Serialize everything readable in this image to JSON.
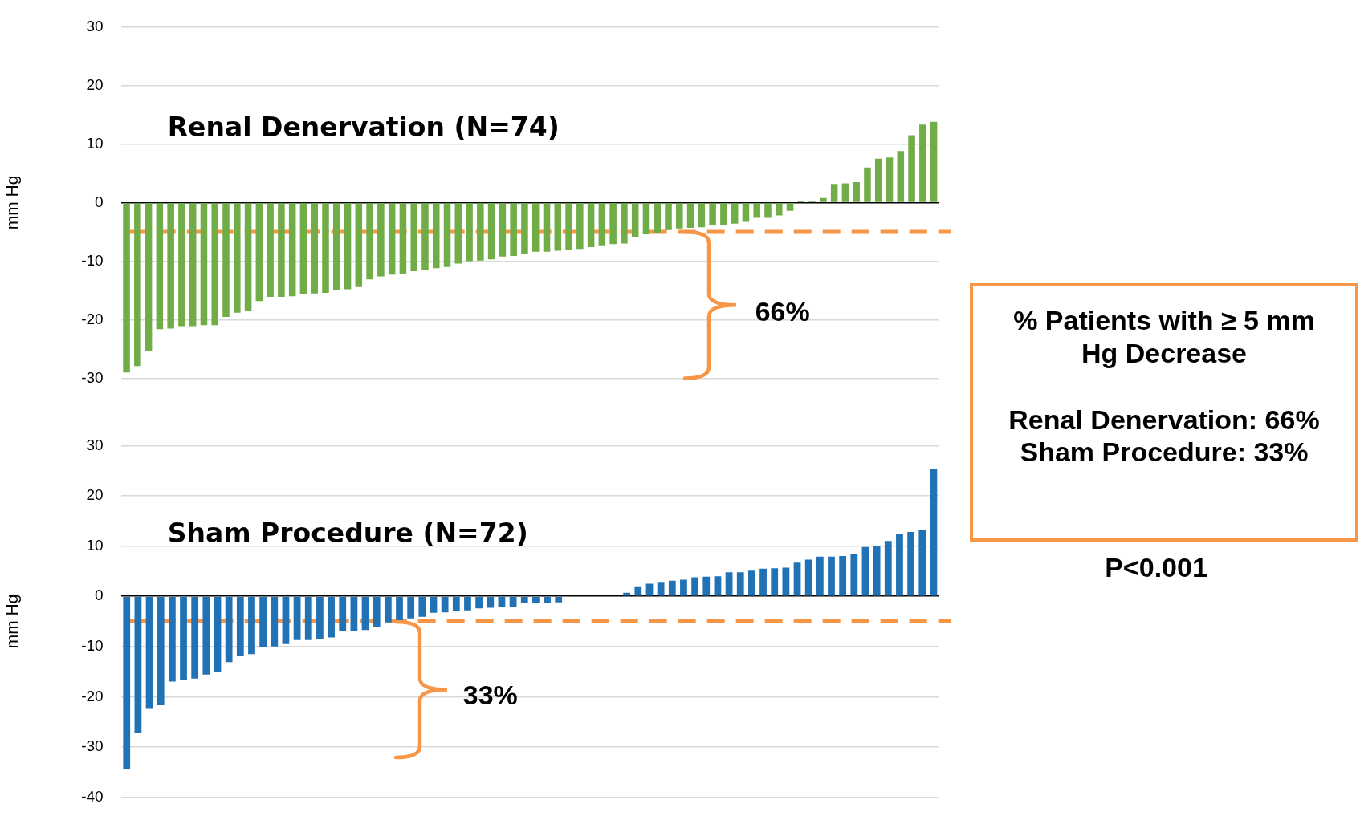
{
  "chart_data": [
    {
      "type": "bar",
      "title": "Renal Denervation (N=74)",
      "ylabel": "mm Hg",
      "color": "#70ad47",
      "ylim": [
        -30,
        30
      ],
      "yticks": [
        -30,
        -20,
        -10,
        0,
        10,
        20,
        30
      ],
      "grid": "y",
      "tick_labels": "y",
      "categories": [
        null,
        null,
        null,
        null,
        null,
        null,
        null,
        null,
        null,
        null,
        null,
        null,
        null,
        null,
        null,
        null,
        null,
        null,
        null,
        null,
        null,
        null,
        null,
        null,
        null,
        null,
        null,
        null,
        null,
        null,
        null,
        null,
        null,
        null,
        null,
        null,
        null,
        null,
        null,
        null,
        null,
        null,
        null,
        null,
        null,
        null,
        null,
        null,
        null,
        null,
        null,
        null,
        null,
        null,
        null,
        null,
        null,
        null,
        null,
        null,
        null,
        null,
        null,
        null,
        null,
        null,
        null,
        null,
        null,
        null,
        null,
        null,
        null,
        null
      ],
      "values": [
        -29,
        -27.9,
        -25.3,
        -21.6,
        -21.5,
        -21.1,
        -21.1,
        -20.9,
        -20.9,
        -19.5,
        -18.8,
        -18.5,
        -16.8,
        -16.1,
        -16.1,
        -16,
        -15.6,
        -15.5,
        -15.4,
        -15,
        -14.8,
        -14.4,
        -13.1,
        -12.6,
        -12.3,
        -12.2,
        -11.7,
        -11.5,
        -11.2,
        -11,
        -10.4,
        -10,
        -9.9,
        -9.7,
        -9.2,
        -9.1,
        -8.8,
        -8.4,
        -8.4,
        -8.2,
        -8,
        -7.9,
        -7.6,
        -7.3,
        -7.1,
        -7,
        -5.9,
        -5.4,
        -5.2,
        -4.7,
        -4.4,
        -4.3,
        -4.2,
        -3.8,
        -3.8,
        -3.6,
        -3.3,
        -2.6,
        -2.6,
        -2.2,
        -1.4,
        0.2,
        0.2,
        0.8,
        3.2,
        3.3,
        3.5,
        6,
        7.5,
        7.7,
        8.8,
        11.5,
        13.3,
        13.8
      ],
      "ref_lines": [
        {
          "axis": "y",
          "value": -5,
          "color": "#f79646",
          "line_style": "dashed"
        }
      ],
      "annotations": [
        "66%"
      ]
    },
    {
      "type": "bar",
      "title": "Sham Procedure (N=72)",
      "ylabel": "mm Hg",
      "color": "#2172b5",
      "ylim": [
        -40,
        30
      ],
      "yticks": [
        -40,
        -30,
        -20,
        -10,
        0,
        10,
        20,
        30
      ],
      "grid": "y",
      "tick_labels": "y",
      "categories": [
        null,
        null,
        null,
        null,
        null,
        null,
        null,
        null,
        null,
        null,
        null,
        null,
        null,
        null,
        null,
        null,
        null,
        null,
        null,
        null,
        null,
        null,
        null,
        null,
        null,
        null,
        null,
        null,
        null,
        null,
        null,
        null,
        null,
        null,
        null,
        null,
        null,
        null,
        null,
        null,
        null,
        null,
        null,
        null,
        null,
        null,
        null,
        null,
        null,
        null,
        null,
        null,
        null,
        null,
        null,
        null,
        null,
        null,
        null,
        null,
        null,
        null,
        null,
        null,
        null,
        null,
        null,
        null,
        null,
        null,
        null,
        null
      ],
      "values": [
        -34.4,
        -27.3,
        -22.4,
        -21.7,
        -17,
        -16.7,
        -16.4,
        -15.6,
        -15.1,
        -13.1,
        -11.9,
        -11.5,
        -10.2,
        -10,
        -9.5,
        -8.7,
        -8.7,
        -8.5,
        -8.2,
        -7,
        -7,
        -6.7,
        -6.1,
        -5.2,
        -4.8,
        -4.4,
        -4.1,
        -3.3,
        -3.2,
        -2.9,
        -2.8,
        -2.4,
        -2.3,
        -2.1,
        -2.1,
        -1.4,
        -1.3,
        -1.3,
        -1.2,
        0.1,
        0.1,
        0.1,
        0.1,
        0.1,
        0.7,
        2,
        2.5,
        2.7,
        3.1,
        3.3,
        3.8,
        3.9,
        4,
        4.8,
        4.8,
        5.1,
        5.5,
        5.6,
        5.7,
        6.7,
        7.3,
        7.9,
        7.9,
        8,
        8.4,
        9.8,
        10,
        11,
        12.5,
        12.8,
        13.2,
        25.3
      ],
      "ref_lines": [
        {
          "axis": "y",
          "value": -5,
          "color": "#f79646",
          "line_style": "dashed"
        }
      ],
      "annotations": [
        "33%"
      ]
    },
    {
      "type": "other",
      "title": "% Patients with ≥ 5 mm Hg Decrease",
      "annotations": [
        "Renal Denervation: 66%",
        "Sham Procedure: 33%",
        "P<0.001"
      ]
    }
  ]
}
